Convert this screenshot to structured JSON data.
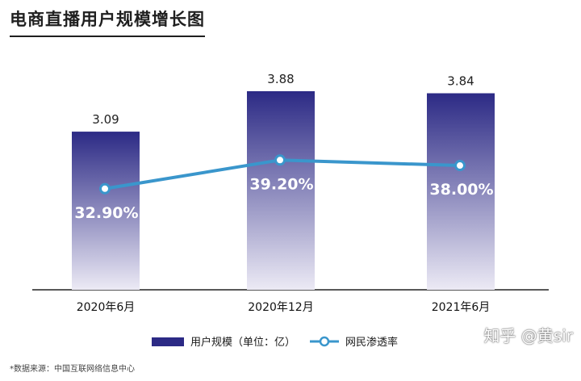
{
  "title": "电商直播用户规模增长图",
  "source": "*数据来源：中国互联网络信息中心",
  "watermark": "知乎 @黄sir",
  "colors": {
    "bar_top": "#2c2a85",
    "bar_bottom": "#eceaf5",
    "line": "#3a96cc",
    "axis": "#222222"
  },
  "chart_data": {
    "type": "bar",
    "categories": [
      "2020年6月",
      "2020年12月",
      "2021年6月"
    ],
    "series": [
      {
        "name": "用户规模（单位：亿）",
        "type": "bar",
        "values": [
          3.09,
          3.88,
          3.84
        ],
        "labels": [
          "3.09",
          "3.88",
          "3.84"
        ]
      },
      {
        "name": "网民渗透率",
        "type": "line",
        "values": [
          32.9,
          39.2,
          38.0
        ],
        "labels": [
          "32.90%",
          "39.20%",
          "38.00%"
        ]
      }
    ],
    "legend_position": "bottom-center",
    "grid": false
  }
}
